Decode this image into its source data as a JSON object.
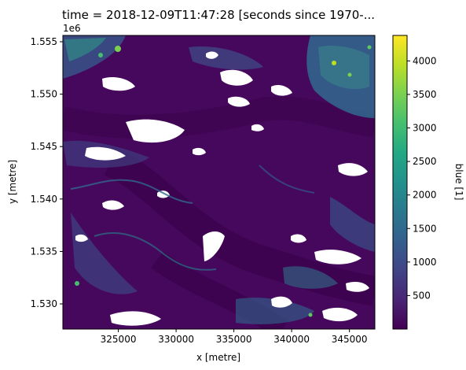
{
  "chart_data": {
    "type": "heatmap",
    "title": "time = 2018-12-09T11:47:28 [seconds since 1970-...",
    "xlabel": "x [metre]",
    "ylabel": "y [metre]",
    "y_offset_label": "1e6",
    "x_ticks": [
      325000,
      330000,
      335000,
      340000,
      345000
    ],
    "x_tick_labels": [
      "325000",
      "330000",
      "335000",
      "340000",
      "345000"
    ],
    "y_ticks": [
      1.53,
      1.535,
      1.54,
      1.545,
      1.55,
      1.555
    ],
    "y_tick_labels": [
      "1.530",
      "1.535",
      "1.540",
      "1.545",
      "1.550",
      "1.555"
    ],
    "xlim": [
      320200,
      347200
    ],
    "ylim": [
      1.5276,
      1.5556
    ],
    "colorbar": {
      "label": "blue [1]",
      "colormap": "viridis",
      "range": [
        0,
        4380
      ],
      "ticks": [
        500,
        1000,
        1500,
        2000,
        2500,
        3000,
        3500,
        4000
      ],
      "tick_labels": [
        "500",
        "1000",
        "1500",
        "2000",
        "2500",
        "3000",
        "3500",
        "4000"
      ]
    },
    "grid": false
  }
}
